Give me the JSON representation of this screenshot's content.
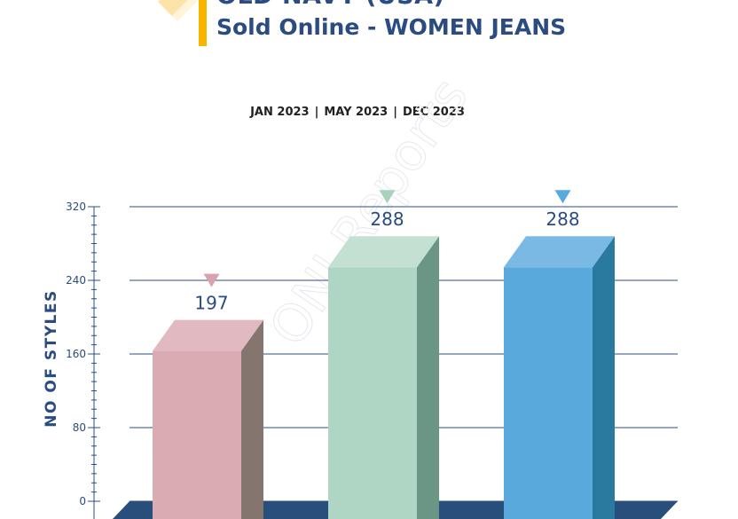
{
  "header": {
    "title": "OLD NAVY (USA)",
    "subtitle": "Sold Online - WOMEN JEANS"
  },
  "period": {
    "items": [
      "JAN 2023",
      "MAY 2023",
      "DEC 2023"
    ],
    "separator": "|"
  },
  "watermark": "ONI Reports",
  "chart_data": {
    "type": "bar",
    "categories": [
      "JAN 2023",
      "MAY 2023",
      "DEC 2023"
    ],
    "values": [
      197,
      288,
      288
    ],
    "ylabel": "NO OF STYLES",
    "ylim": [
      0,
      320
    ],
    "yticks": [
      0,
      80,
      160,
      240,
      320
    ],
    "grid": true,
    "colors": {
      "bar_front": [
        "#d9acb3",
        "#afd5c4",
        "#5aa9dc"
      ],
      "bar_top": [
        "#e0bac0",
        "#c3e0d2",
        "#7ab9e4"
      ],
      "bar_side": [
        "#84756e",
        "#6b9585",
        "#2a7aa0"
      ],
      "marker": [
        "#d9a2ae",
        "#a7d2bd",
        "#59a9dd"
      ],
      "floor": "#284f7c",
      "axis": "#2b4c80"
    }
  }
}
